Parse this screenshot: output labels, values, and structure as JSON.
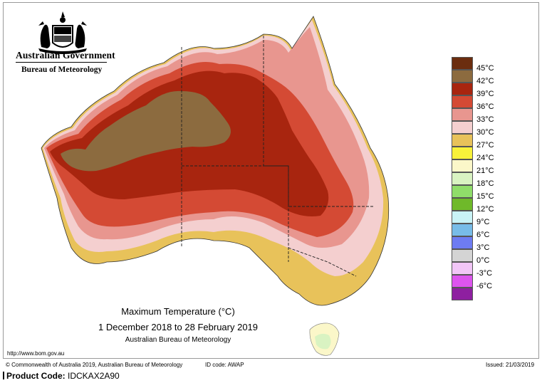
{
  "header": {
    "gov_title": "Australian Government",
    "bureau_title": "Bureau of Meteorology"
  },
  "map": {
    "title": "Maximum Temperature (°C)",
    "period": "1 December 2018 to 28 February 2019",
    "agency": "Australian Bureau of Meteorology"
  },
  "legend": {
    "items": [
      {
        "label": "45°C",
        "color": "#6b2d0f"
      },
      {
        "label": "42°C",
        "color": "#8c6b3f"
      },
      {
        "label": "39°C",
        "color": "#a8250f"
      },
      {
        "label": "36°C",
        "color": "#d44a34"
      },
      {
        "label": "33°C",
        "color": "#e8968f"
      },
      {
        "label": "30°C",
        "color": "#f4cfcf"
      },
      {
        "label": "27°C",
        "color": "#e8c25a"
      },
      {
        "label": "24°C",
        "color": "#f8f23a"
      },
      {
        "label": "21°C",
        "color": "#fbf7c9"
      },
      {
        "label": "18°C",
        "color": "#d9f3c2"
      },
      {
        "label": "15°C",
        "color": "#90dd6a"
      },
      {
        "label": "12°C",
        "color": "#6fb92a"
      },
      {
        "label": "9°C",
        "color": "#c9f3f6"
      },
      {
        "label": "6°C",
        "color": "#78bce8"
      },
      {
        "label": "3°C",
        "color": "#6e7cf2"
      },
      {
        "label": "0°C",
        "color": "#d4d4d4"
      },
      {
        "label": "-3°C",
        "color": "#f2c6f7"
      },
      {
        "label": "-6°C",
        "color": "#dd55ee"
      },
      {
        "label": "",
        "color": "#8e1fa0"
      }
    ]
  },
  "footer": {
    "url": "http://www.bom.gov.au",
    "copyright": "© Commonwealth of Australia 2019, Australian Bureau of Meteorology",
    "id_code": "ID code: AWAP",
    "issued": "Issued: 21/03/2019"
  },
  "product": {
    "label": "Product Code:",
    "code": "IDCKAX2A90"
  }
}
